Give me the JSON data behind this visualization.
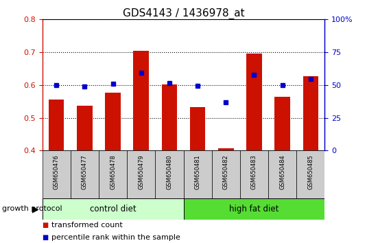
{
  "title": "GDS4143 / 1436978_at",
  "samples": [
    "GSM650476",
    "GSM650477",
    "GSM650478",
    "GSM650479",
    "GSM650480",
    "GSM650481",
    "GSM650482",
    "GSM650483",
    "GSM650484",
    "GSM650485"
  ],
  "transformed_count": [
    0.555,
    0.538,
    0.577,
    0.705,
    0.602,
    0.533,
    0.407,
    0.695,
    0.565,
    0.628
  ],
  "percentile_rank": [
    0.6,
    0.595,
    0.605,
    0.638,
    0.607,
    0.597,
    0.547,
    0.632,
    0.6,
    0.618
  ],
  "bar_bottom": 0.4,
  "ylim_left": [
    0.4,
    0.8
  ],
  "ylim_right": [
    0,
    100
  ],
  "yticks_left": [
    0.4,
    0.5,
    0.6,
    0.7,
    0.8
  ],
  "yticks_right": [
    0,
    25,
    50,
    75,
    100
  ],
  "ytick_labels_right": [
    "0",
    "25",
    "50",
    "75",
    "100%"
  ],
  "bar_color": "#cc1100",
  "dot_color": "#0000cc",
  "control_diet_label": "control diet",
  "high_fat_label": "high fat diet",
  "growth_protocol_label": "growth protocol",
  "legend_bar_label": "transformed count",
  "legend_dot_label": "percentile rank within the sample",
  "control_color": "#ccffcc",
  "high_fat_color": "#55dd33",
  "xlabel_area_color": "#cccccc",
  "title_fontsize": 11,
  "tick_fontsize": 8,
  "label_fontsize": 8,
  "sample_fontsize": 6,
  "legend_fontsize": 8,
  "protocol_fontsize": 8,
  "diet_label_fontsize": 8.5
}
